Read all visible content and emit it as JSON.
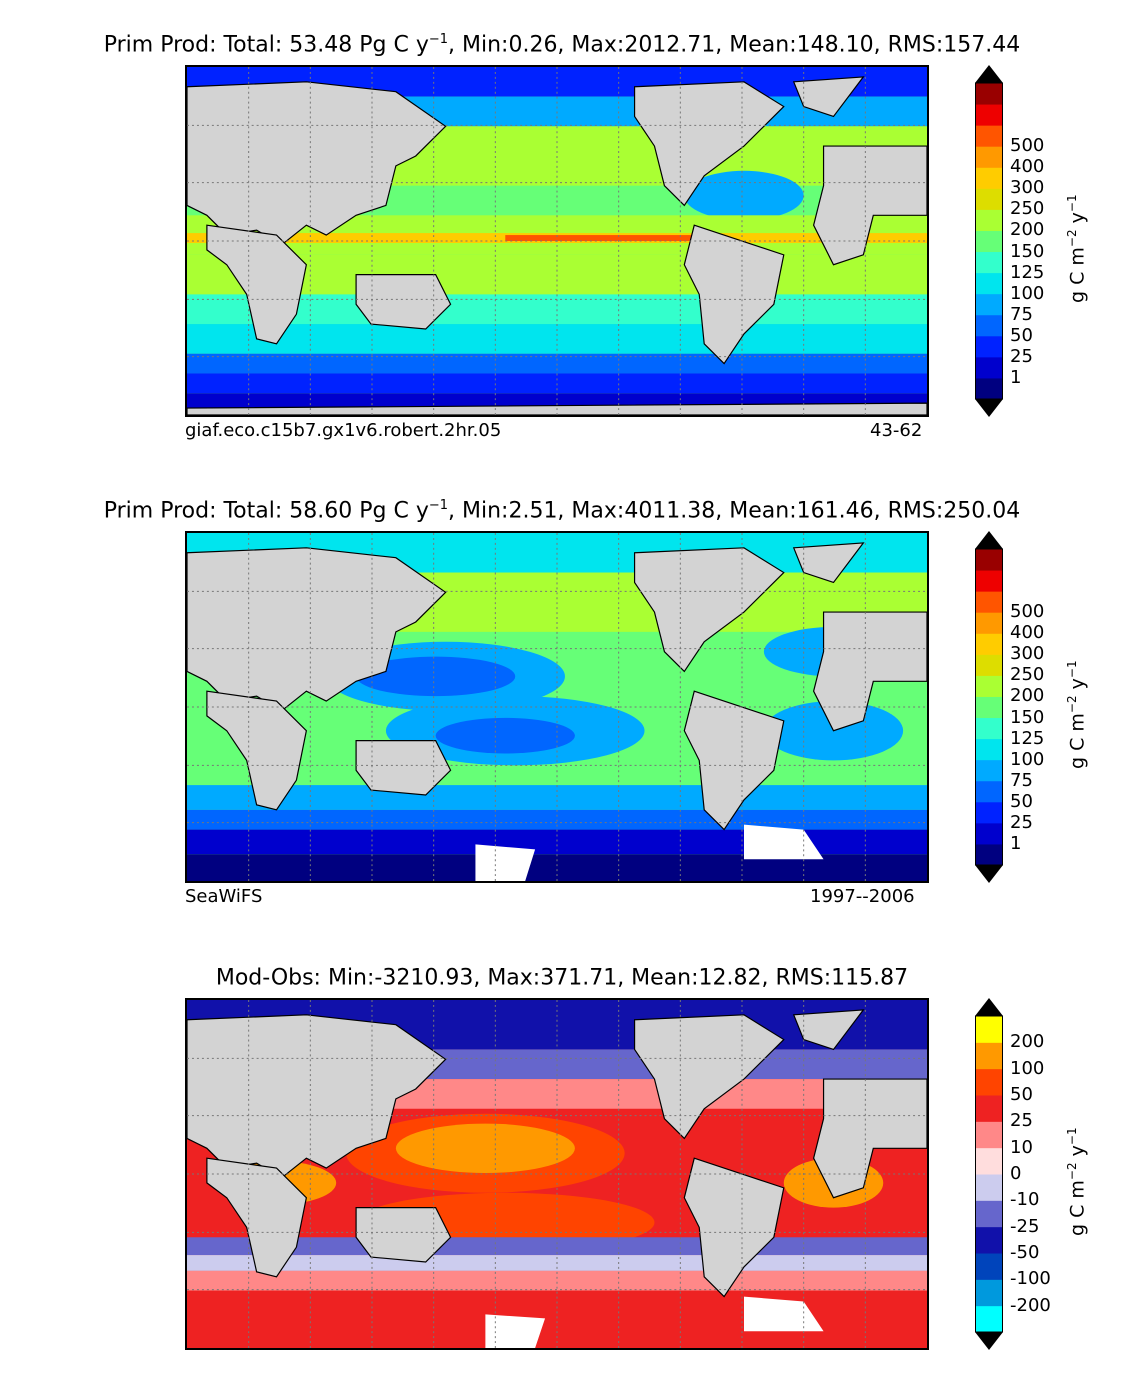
{
  "panels": [
    {
      "title_prefix": "Prim Prod: Total: 53.48 Pg C y",
      "title_sup": "−1",
      "title_suffix": ", Min:0.26, Max:2012.71, Mean:148.10, RMS:157.44",
      "caption_left": "giaf.eco.c15b7.gx1v6.robert.2hr.05",
      "caption_right": "43-62",
      "unit_main": "g C m",
      "unit_sup1": "−2",
      "unit_mid": " y",
      "unit_sup2": "−1",
      "colorbar_ticks": [
        "500",
        "400",
        "300",
        "250",
        "200",
        "150",
        "125",
        "100",
        "75",
        "50",
        "25",
        "1"
      ],
      "colorbar_colors": [
        "#000080",
        "#0000cd",
        "#0022ff",
        "#0066ff",
        "#00aaff",
        "#00e5ee",
        "#33ffcc",
        "#66ff77",
        "#aaff33",
        "#dddd00",
        "#ffcc00",
        "#ff9900",
        "#ff5500",
        "#ee0000",
        "#990000"
      ]
    },
    {
      "title_prefix": "Prim Prod: Total: 58.60 Pg C y",
      "title_sup": "−1",
      "title_suffix": ", Min:2.51, Max:4011.38, Mean:161.46, RMS:250.04",
      "caption_left": "SeaWiFS",
      "caption_right": "1997--2006",
      "unit_main": "g C m",
      "unit_sup1": "−2",
      "unit_mid": " y",
      "unit_sup2": "−1",
      "colorbar_ticks": [
        "500",
        "400",
        "300",
        "250",
        "200",
        "150",
        "125",
        "100",
        "75",
        "50",
        "25",
        "1"
      ],
      "colorbar_colors": [
        "#000080",
        "#0000cd",
        "#0022ff",
        "#0066ff",
        "#00aaff",
        "#00e5ee",
        "#33ffcc",
        "#66ff77",
        "#aaff33",
        "#dddd00",
        "#ffcc00",
        "#ff9900",
        "#ff5500",
        "#ee0000",
        "#990000"
      ]
    },
    {
      "title_prefix": "Mod-Obs: Min:-3210.93, Max:371.71, Mean:12.82, RMS:115.87",
      "title_sup": "",
      "title_suffix": "",
      "caption_left": "",
      "caption_right": "",
      "unit_main": "g C m",
      "unit_sup1": "−2",
      "unit_mid": " y",
      "unit_sup2": "−1",
      "colorbar_ticks": [
        "200",
        "100",
        "50",
        "25",
        "10",
        "0",
        "-10",
        "-25",
        "-50",
        "-100",
        "-200"
      ],
      "colorbar_colors": [
        "#00ffff",
        "#0099dd",
        "#0044bb",
        "#1111aa",
        "#6666cc",
        "#ccccee",
        "#ffdddd",
        "#ff8888",
        "#ee2222",
        "#ff4400",
        "#ff9900",
        "#ffff00"
      ]
    }
  ],
  "map_colors": {
    "land": "#d3d3d3",
    "grid": "#777777"
  }
}
